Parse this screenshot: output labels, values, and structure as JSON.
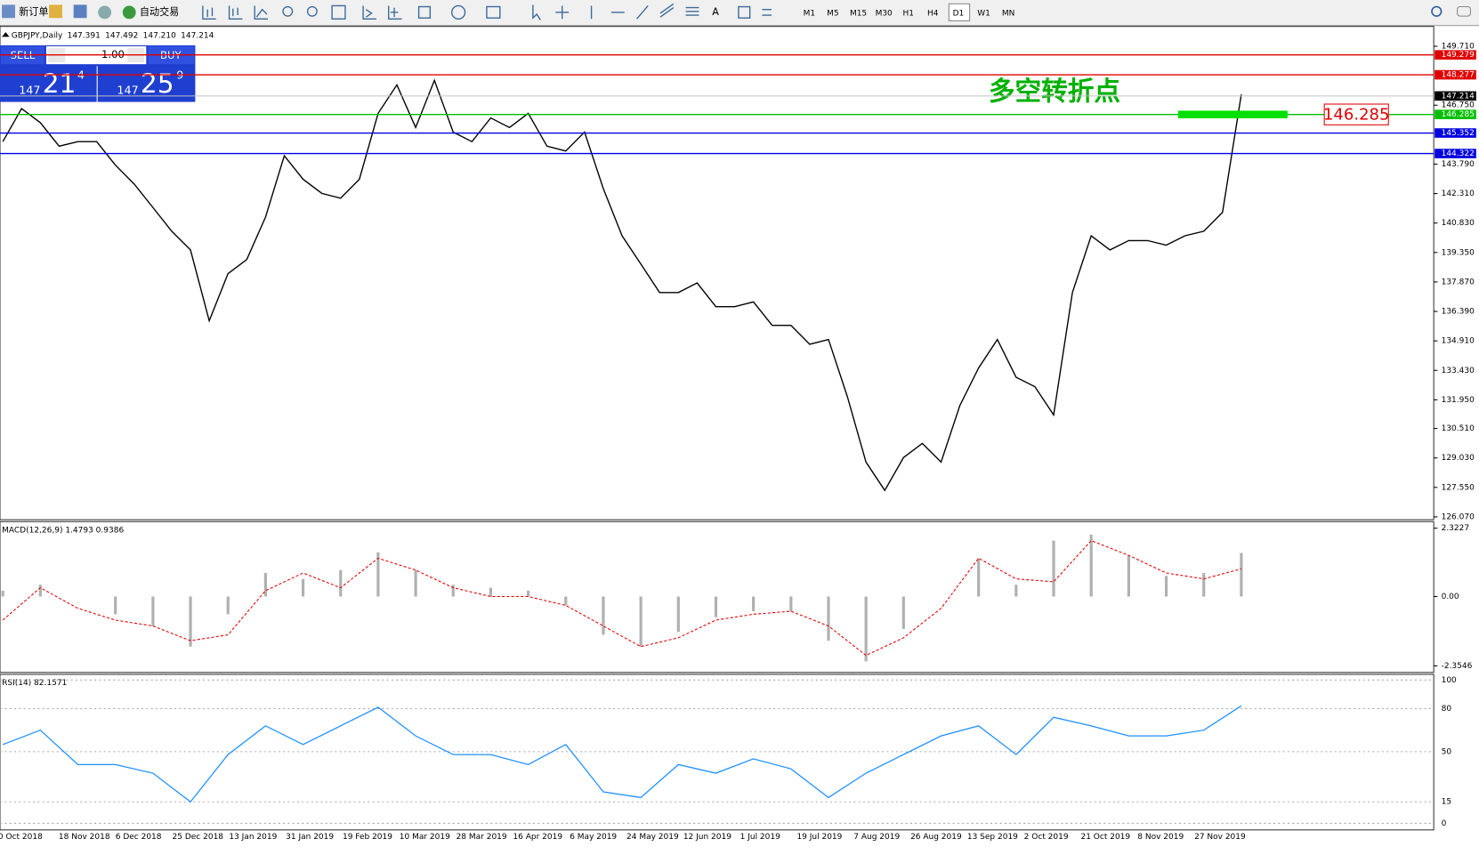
{
  "toolbar": {
    "new_order": "新订单",
    "auto_trading": "自动交易",
    "timeframes": [
      "M1",
      "M5",
      "M15",
      "M30",
      "H1",
      "H4",
      "D1",
      "W1",
      "MN"
    ]
  },
  "chart": {
    "symbol": "GBPJPY,Daily",
    "ohlc": [
      "147.391",
      "147.492",
      "147.210",
      "147.214"
    ],
    "ylim": [
      126.07,
      149.71
    ],
    "yticks": [
      {
        "value": 149.71,
        "label": "149.710"
      },
      {
        "value": 146.75,
        "label": "146.750"
      },
      {
        "value": 143.79,
        "label": "143.790"
      },
      {
        "value": 142.31,
        "label": "142.310"
      },
      {
        "value": 140.83,
        "label": "140.830"
      },
      {
        "value": 139.35,
        "label": "139.350"
      },
      {
        "value": 137.87,
        "label": "137.870"
      },
      {
        "value": 136.39,
        "label": "136.390"
      },
      {
        "value": 134.91,
        "label": "134.910"
      },
      {
        "value": 133.43,
        "label": "133.430"
      },
      {
        "value": 131.95,
        "label": "131.950"
      },
      {
        "value": 130.51,
        "label": "130.510"
      },
      {
        "value": 129.03,
        "label": "129.030"
      },
      {
        "value": 127.55,
        "label": "127.550"
      },
      {
        "value": 126.07,
        "label": "126.070"
      }
    ],
    "current": {
      "value": 147.214,
      "label": "147.214"
    },
    "levels": [
      {
        "value": 149.279,
        "color": "#e00000"
      },
      {
        "value": 148.277,
        "color": "#e00000"
      },
      {
        "value": 146.285,
        "color": "#00c000"
      },
      {
        "value": 145.352,
        "color": "#0000e0"
      },
      {
        "value": 144.322,
        "color": "#0000e0"
      }
    ],
    "annotation": "多空转折点",
    "marked_level": 146.285,
    "closes": [
      144.92,
      146.58,
      145.87,
      144.69,
      144.92,
      144.92,
      143.74,
      142.79,
      141.61,
      140.42,
      139.48,
      135.92,
      138.29,
      139.0,
      141.13,
      144.21,
      143.03,
      142.32,
      142.08,
      143.03,
      146.34,
      147.77,
      145.63,
      148.0,
      145.4,
      144.92,
      146.11,
      145.63,
      146.34,
      144.69,
      144.45,
      145.4,
      142.56,
      140.19,
      138.77,
      137.34,
      137.34,
      137.82,
      136.63,
      136.63,
      136.87,
      135.69,
      135.69,
      134.74,
      134.98,
      132.13,
      128.82,
      127.4,
      129.05,
      129.76,
      128.82,
      131.66,
      133.55,
      134.98,
      133.08,
      132.61,
      131.19,
      137.34,
      140.19,
      139.48,
      139.95,
      139.95,
      139.72,
      140.19,
      140.42,
      141.37,
      147.29
    ],
    "dates": [
      "0 Oct 2018",
      "18 Nov 2018",
      "6 Dec 2018",
      "25 Dec 2018",
      "13 Jan 2019",
      "31 Jan 2019",
      "19 Feb 2019",
      "10 Mar 2019",
      "28 Mar 2019",
      "16 Apr 2019",
      "6 May 2019",
      "24 May 2019",
      "12 Jun 2019",
      "1 Jul 2019",
      "19 Jul 2019",
      "7 Aug 2019",
      "26 Aug 2019",
      "13 Sep 2019",
      "2 Oct 2019",
      "21 Oct 2019",
      "8 Nov 2019",
      "27 Nov 2019"
    ]
  },
  "trade_panel": {
    "sell": "SELL",
    "buy": "BUY",
    "lot": "1.00",
    "bid_big": "147",
    "bid_mid": "21",
    "bid_small": "4",
    "ask_big": "147",
    "ask_mid": "25",
    "ask_small": "9"
  },
  "macd": {
    "label": "MACD(12,26,9) 1.4793 0.9386",
    "ylim": [
      -2.3546,
      2.3227
    ],
    "yticks": [
      {
        "value": 2.3227,
        "label": "2.3227"
      },
      {
        "value": 0,
        "label": "0.00"
      },
      {
        "value": -2.3546,
        "label": "-2.3546"
      }
    ],
    "main": [
      0.2,
      0.4,
      0,
      -0.6,
      -1.0,
      -1.7,
      -0.6,
      0.8,
      0.6,
      0.9,
      1.5,
      0.9,
      0.4,
      0.3,
      0.2,
      -0.3,
      -1.3,
      -1.7,
      -1.2,
      -0.7,
      -0.5,
      -0.5,
      -1.5,
      -2.2,
      -1.1,
      0,
      1.3,
      0.4,
      1.9,
      2.1,
      1.4,
      0.7,
      0.8,
      1.48
    ],
    "signal": [
      -0.8,
      0.3,
      -0.4,
      -0.8,
      -1.0,
      -1.5,
      -1.3,
      0.2,
      0.8,
      0.3,
      1.3,
      0.9,
      0.3,
      0,
      0,
      -0.3,
      -1.0,
      -1.7,
      -1.4,
      -0.8,
      -0.6,
      -0.5,
      -1.0,
      -2.0,
      -1.4,
      -0.4,
      1.3,
      0.6,
      0.5,
      1.9,
      1.4,
      0.8,
      0.6,
      0.94
    ]
  },
  "rsi": {
    "label": "RSI(14) 82.1571",
    "ylim": [
      0,
      100
    ],
    "yticks": [
      100,
      80,
      50,
      15,
      0
    ],
    "values": [
      55,
      65,
      41,
      41,
      35,
      15,
      48,
      68,
      55,
      68,
      81,
      61,
      48,
      48,
      41,
      55,
      22,
      18,
      41,
      35,
      45,
      38,
      18,
      35,
      48,
      61,
      68,
      48,
      74,
      68,
      61,
      61,
      65,
      82
    ]
  }
}
